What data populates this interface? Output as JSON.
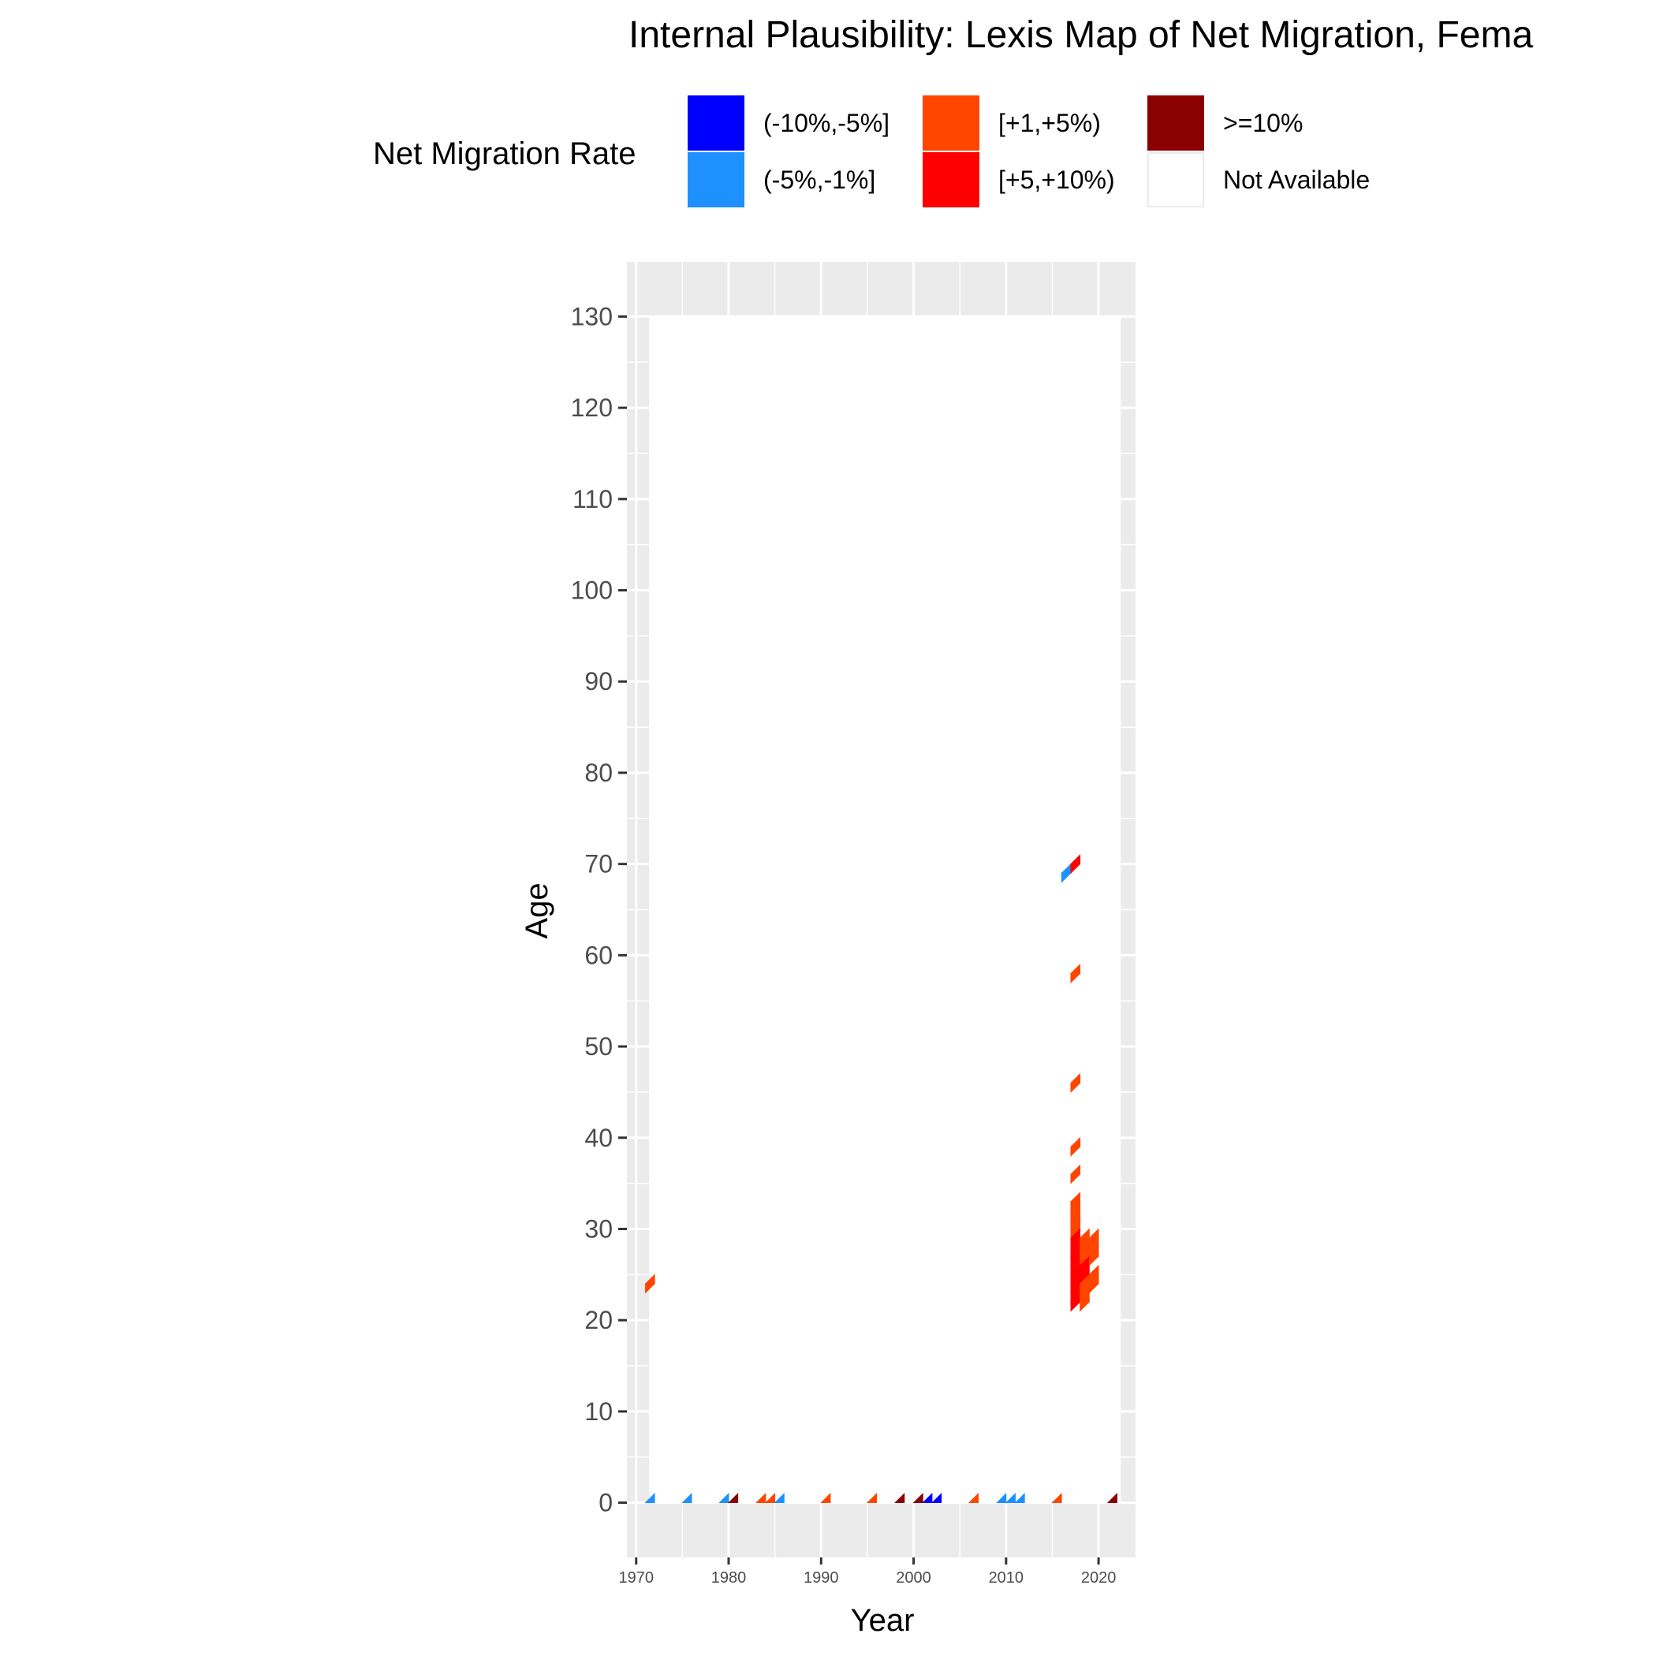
{
  "chart_data": {
    "type": "heatmap",
    "title": "Internal Plausibility: Lexis Map of Net Migration, Fema",
    "xlabel": "Year",
    "ylabel": "Age",
    "xlim": [
      1969,
      2024
    ],
    "ylim": [
      -6,
      136
    ],
    "data_xlim": [
      1971,
      2022
    ],
    "data_ylim": [
      0,
      130
    ],
    "x_ticks": [
      1970,
      1980,
      1990,
      2000,
      2010,
      2020
    ],
    "y_ticks": [
      0,
      10,
      20,
      30,
      40,
      50,
      60,
      70,
      80,
      90,
      100,
      110,
      120,
      130
    ],
    "grid": true,
    "legend_position": "top",
    "legend": {
      "title": "Net Migration Rate",
      "items": [
        {
          "label": "(-10%,-5%]",
          "color": "#0000FF"
        },
        {
          "label": "(-5%,-1%]",
          "color": "#1E90FF"
        },
        {
          "label": "[+1,+5%)",
          "color": "#FF4500"
        },
        {
          "label": "[+5,+10%)",
          "color": "#FF0000"
        },
        {
          "label": ">=10%",
          "color": "#8B0000"
        },
        {
          "label": "Not Available",
          "color": "#FFFFFF"
        }
      ]
    },
    "cells": [
      {
        "year": 1971,
        "age": 0,
        "category": "(-5%,-1%]"
      },
      {
        "year": 1971,
        "age": 24,
        "category": "[+1,+5%)"
      },
      {
        "year": 1975,
        "age": 0,
        "category": "(-5%,-1%]"
      },
      {
        "year": 1979,
        "age": 0,
        "category": "(-5%,-1%]"
      },
      {
        "year": 1980,
        "age": 0,
        "category": ">=10%"
      },
      {
        "year": 1983,
        "age": 0,
        "category": "[+1,+5%)"
      },
      {
        "year": 1984,
        "age": 0,
        "category": "[+1,+5%)"
      },
      {
        "year": 1985,
        "age": 0,
        "category": "(-5%,-1%]"
      },
      {
        "year": 1990,
        "age": 0,
        "category": "[+1,+5%)"
      },
      {
        "year": 1995,
        "age": 0,
        "category": "[+1,+5%)"
      },
      {
        "year": 1998,
        "age": 0,
        "category": ">=10%"
      },
      {
        "year": 2000,
        "age": 0,
        "category": ">=10%"
      },
      {
        "year": 2001,
        "age": 0,
        "category": "(-10%,-5%]"
      },
      {
        "year": 2002,
        "age": 0,
        "category": "(-10%,-5%]"
      },
      {
        "year": 2006,
        "age": 0,
        "category": "[+1,+5%)"
      },
      {
        "year": 2009,
        "age": 0,
        "category": "(-5%,-1%]"
      },
      {
        "year": 2010,
        "age": 0,
        "category": "(-5%,-1%]"
      },
      {
        "year": 2011,
        "age": 0,
        "category": "(-5%,-1%]"
      },
      {
        "year": 2015,
        "age": 0,
        "category": "[+1,+5%)"
      },
      {
        "year": 2021,
        "age": 0,
        "category": ">=10%"
      },
      {
        "year": 2016,
        "age": 69,
        "category": "(-5%,-1%]"
      },
      {
        "year": 2017,
        "age": 70,
        "category": "[+5,+10%)"
      },
      {
        "year": 2017,
        "age": 58,
        "category": "[+1,+5%)"
      },
      {
        "year": 2017,
        "age": 46,
        "category": "[+1,+5%)"
      },
      {
        "year": 2017,
        "age": 39,
        "category": "[+1,+5%)"
      },
      {
        "year": 2017,
        "age": 36,
        "category": "[+1,+5%)"
      },
      {
        "year": 2017,
        "age": 33,
        "category": "[+1,+5%)"
      },
      {
        "year": 2017,
        "age": 32,
        "category": "[+1,+5%)"
      },
      {
        "year": 2017,
        "age": 31,
        "category": "[+1,+5%)"
      },
      {
        "year": 2017,
        "age": 30,
        "category": "[+1,+5%)"
      },
      {
        "year": 2017,
        "age": 29,
        "category": "[+5,+10%)"
      },
      {
        "year": 2017,
        "age": 28,
        "category": "[+5,+10%)"
      },
      {
        "year": 2017,
        "age": 27,
        "category": "[+5,+10%)"
      },
      {
        "year": 2017,
        "age": 26,
        "category": "[+5,+10%)"
      },
      {
        "year": 2017,
        "age": 25,
        "category": "[+5,+10%)"
      },
      {
        "year": 2017,
        "age": 24,
        "category": "[+5,+10%)"
      },
      {
        "year": 2017,
        "age": 23,
        "category": "[+5,+10%)"
      },
      {
        "year": 2017,
        "age": 22,
        "category": "[+5,+10%)"
      },
      {
        "year": 2018,
        "age": 29,
        "category": "[+1,+5%)"
      },
      {
        "year": 2018,
        "age": 28,
        "category": "[+1,+5%)"
      },
      {
        "year": 2018,
        "age": 27,
        "category": "[+1,+5%)"
      },
      {
        "year": 2018,
        "age": 26,
        "category": "[+5,+10%)"
      },
      {
        "year": 2018,
        "age": 25,
        "category": "[+5,+10%)"
      },
      {
        "year": 2018,
        "age": 24,
        "category": "[+1,+5%)"
      },
      {
        "year": 2018,
        "age": 23,
        "category": "[+1,+5%)"
      },
      {
        "year": 2018,
        "age": 22,
        "category": "[+1,+5%)"
      },
      {
        "year": 2019,
        "age": 29,
        "category": "[+1,+5%)"
      },
      {
        "year": 2019,
        "age": 28,
        "category": "[+1,+5%)"
      },
      {
        "year": 2019,
        "age": 27,
        "category": "[+1,+5%)"
      },
      {
        "year": 2019,
        "age": 25,
        "category": "[+1,+5%)"
      },
      {
        "year": 2019,
        "age": 24,
        "category": "[+1,+5%)"
      }
    ]
  }
}
